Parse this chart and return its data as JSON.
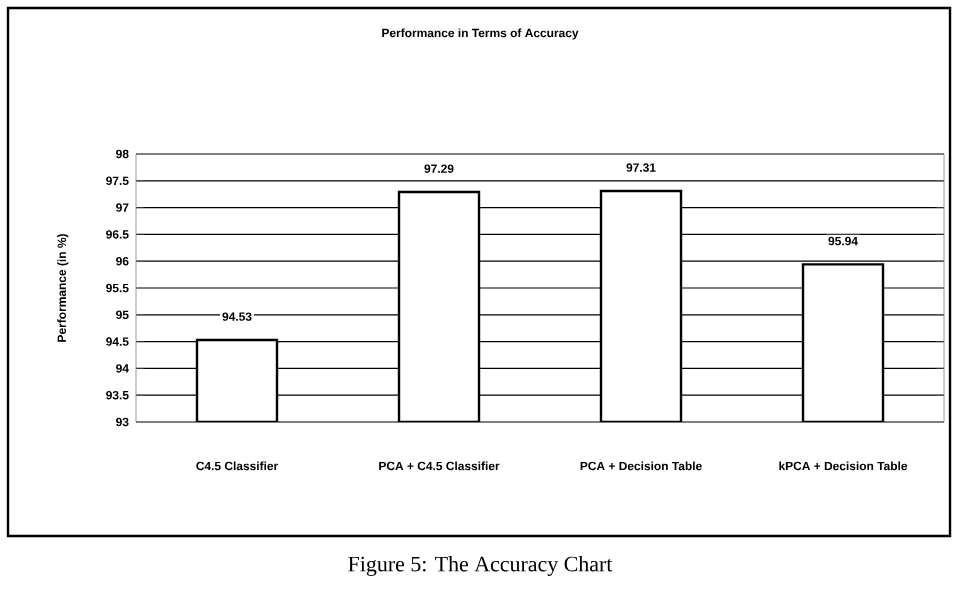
{
  "chart_data": {
    "type": "bar",
    "title": "Performance in Terms of Accuracy",
    "ylabel": "Performance (in %)",
    "categories": [
      "C4.5 Classifier",
      "PCA + C4.5 Classifier",
      "PCA + Decision Table",
      "kPCA + Decision Table"
    ],
    "values": [
      94.53,
      97.29,
      97.31,
      95.94
    ],
    "color": "#ffffff",
    "ylim": [
      93,
      98
    ],
    "yticks": [
      93,
      93.5,
      94,
      94.5,
      95,
      95.5,
      96,
      96.5,
      97,
      97.5,
      98
    ],
    "grid": "y",
    "data_labels": true,
    "annotations": [
      "Figure 5: The Accuracy Chart"
    ]
  }
}
